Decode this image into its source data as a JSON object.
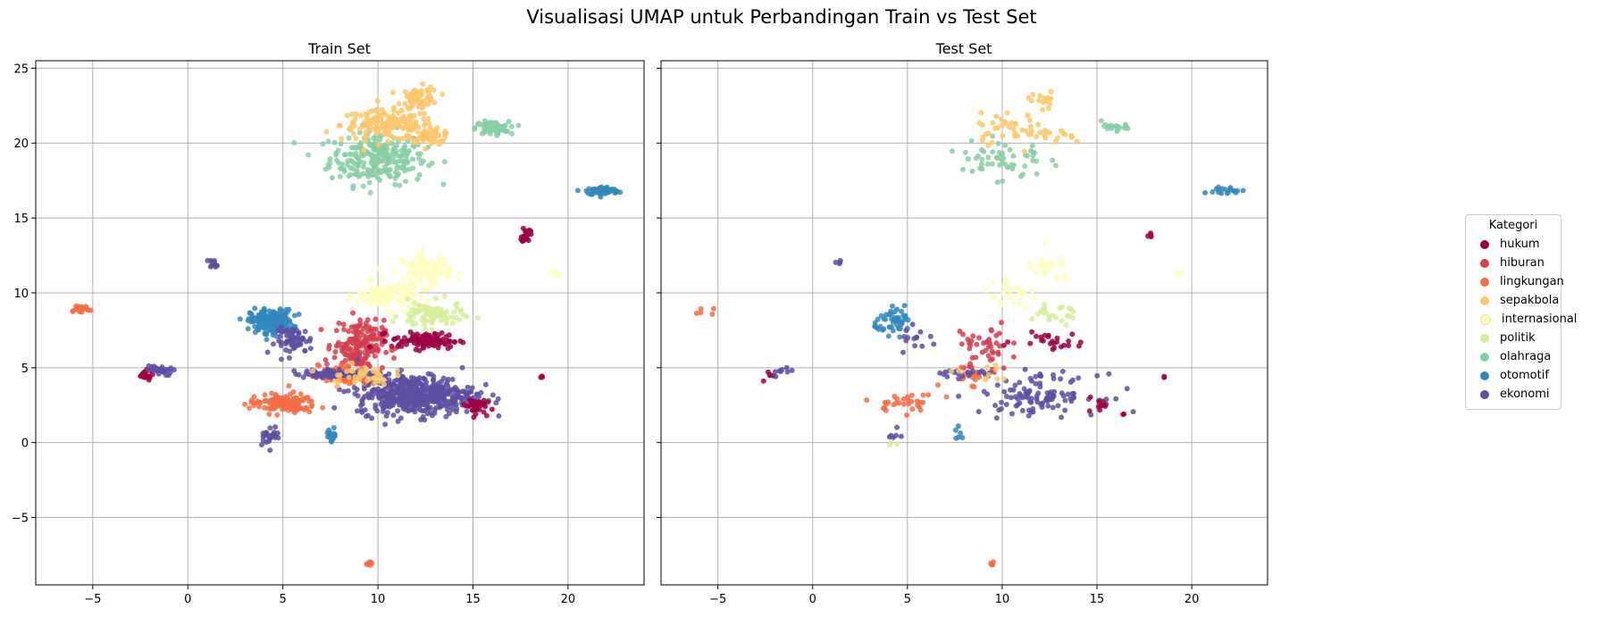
{
  "figure_title": "Visualisasi UMAP untuk Perbandingan Train vs Test Set",
  "legend": {
    "title": "Kategori",
    "entries": [
      {
        "label": "hukum",
        "color": "#9e0142"
      },
      {
        "label": "hiburan",
        "color": "#d53e4f"
      },
      {
        "label": "lingkungan",
        "color": "#f46d43"
      },
      {
        "label": "sepakbola",
        "color": "#fdc76b"
      },
      {
        "label": "internasional",
        "color": "#ffffbf"
      },
      {
        "label": "politik",
        "color": "#d6ee9b"
      },
      {
        "label": "olahraga",
        "color": "#88cfa4"
      },
      {
        "label": "otomotif",
        "color": "#3288bd"
      },
      {
        "label": "ekonomi",
        "color": "#5e4fa2"
      }
    ]
  },
  "chart_data": [
    {
      "type": "scatter",
      "title": "Train Set",
      "xlabel": "",
      "ylabel": "",
      "xlim": [
        -8,
        24
      ],
      "ylim": [
        -9.5,
        25.5
      ],
      "xticks": [
        -5,
        0,
        5,
        10,
        15,
        20
      ],
      "yticks": [
        -5,
        0,
        5,
        10,
        15,
        20,
        25
      ],
      "grid": true,
      "clusters": [
        {
          "category": "olahraga",
          "cx": 10,
          "cy": 19,
          "rx": 2.3,
          "ry": 1.6,
          "n": 260
        },
        {
          "category": "sepakbola",
          "cx": 10.5,
          "cy": 21.2,
          "rx": 2.2,
          "ry": 0.9,
          "n": 160
        },
        {
          "category": "sepakbola",
          "cx": 12.2,
          "cy": 23,
          "rx": 0.9,
          "ry": 0.7,
          "n": 60
        },
        {
          "category": "sepakbola",
          "cx": 12.8,
          "cy": 20.5,
          "rx": 1.0,
          "ry": 0.4,
          "n": 50
        },
        {
          "category": "olahraga",
          "cx": 16,
          "cy": 21,
          "rx": 0.8,
          "ry": 0.4,
          "n": 80
        },
        {
          "category": "otomotif",
          "cx": 21.8,
          "cy": 16.8,
          "rx": 0.8,
          "ry": 0.25,
          "n": 80
        },
        {
          "category": "hukum",
          "cx": 17.8,
          "cy": 13.9,
          "rx": 0.2,
          "ry": 0.5,
          "n": 25
        },
        {
          "category": "ekonomi",
          "cx": 1.4,
          "cy": 12,
          "rx": 0.25,
          "ry": 0.25,
          "n": 12
        },
        {
          "category": "lingkungan",
          "cx": -5.7,
          "cy": 8.9,
          "rx": 0.6,
          "ry": 0.3,
          "n": 18
        },
        {
          "category": "hukum",
          "cx": -2.3,
          "cy": 4.5,
          "rx": 0.4,
          "ry": 0.3,
          "n": 20
        },
        {
          "category": "ekonomi",
          "cx": -1.5,
          "cy": 4.8,
          "rx": 0.6,
          "ry": 0.3,
          "n": 28
        },
        {
          "category": "otomotif",
          "cx": 4.4,
          "cy": 8.1,
          "rx": 1.0,
          "ry": 0.7,
          "n": 220
        },
        {
          "category": "ekonomi",
          "cx": 5.6,
          "cy": 6.8,
          "rx": 0.9,
          "ry": 0.8,
          "n": 60
        },
        {
          "category": "internasional",
          "cx": 12.5,
          "cy": 11.5,
          "rx": 1.2,
          "ry": 1.0,
          "n": 100
        },
        {
          "category": "internasional",
          "cx": 10.5,
          "cy": 9.8,
          "rx": 1.4,
          "ry": 0.8,
          "n": 120
        },
        {
          "category": "politik",
          "cx": 12.8,
          "cy": 8.5,
          "rx": 1.5,
          "ry": 0.8,
          "n": 90
        },
        {
          "category": "hiburan",
          "cx": 9,
          "cy": 6.5,
          "rx": 1.2,
          "ry": 1.5,
          "n": 180
        },
        {
          "category": "hukum",
          "cx": 12.5,
          "cy": 6.8,
          "rx": 1.6,
          "ry": 0.5,
          "n": 100
        },
        {
          "category": "ekonomi",
          "cx": 12,
          "cy": 3.2,
          "rx": 2.8,
          "ry": 1.2,
          "n": 500
        },
        {
          "category": "hukum",
          "cx": 15.1,
          "cy": 2.5,
          "rx": 0.5,
          "ry": 0.5,
          "n": 40
        },
        {
          "category": "lingkungan",
          "cx": 5,
          "cy": 2.6,
          "rx": 1.6,
          "ry": 0.6,
          "n": 130
        },
        {
          "category": "lingkungan",
          "cx": 8.2,
          "cy": 4.5,
          "rx": 1.2,
          "ry": 0.6,
          "n": 80
        },
        {
          "category": "otomotif",
          "cx": 7.6,
          "cy": 0.5,
          "rx": 0.25,
          "ry": 0.4,
          "n": 20
        },
        {
          "category": "ekonomi",
          "cx": 4.3,
          "cy": 0.5,
          "rx": 0.5,
          "ry": 0.6,
          "n": 25
        },
        {
          "category": "ekonomi",
          "cx": 8,
          "cy": 4.6,
          "rx": 2.2,
          "ry": 0.25,
          "n": 80
        },
        {
          "category": "lingkungan",
          "cx": 9.5,
          "cy": -8.1,
          "rx": 0.15,
          "ry": 0.15,
          "n": 8
        },
        {
          "category": "internasional",
          "cx": 19.3,
          "cy": 11.3,
          "rx": 0.2,
          "ry": 0.15,
          "n": 6
        },
        {
          "category": "hukum",
          "cx": 18.6,
          "cy": 4.4,
          "rx": 0.1,
          "ry": 0.1,
          "n": 3
        },
        {
          "category": "sepakbola",
          "cx": 9,
          "cy": 4.5,
          "rx": 1.5,
          "ry": 0.6,
          "n": 40
        }
      ]
    },
    {
      "type": "scatter",
      "title": "Test Set",
      "xlabel": "",
      "ylabel": "",
      "xlim": [
        -8,
        24
      ],
      "ylim": [
        -9.5,
        25.5
      ],
      "xticks": [
        -5,
        0,
        5,
        10,
        15,
        20
      ],
      "yticks": [
        -5,
        0,
        5,
        10,
        15,
        20,
        25
      ],
      "grid": true,
      "clusters": [
        {
          "category": "olahraga",
          "cx": 10,
          "cy": 19,
          "rx": 2.0,
          "ry": 1.5,
          "n": 55
        },
        {
          "category": "sepakbola",
          "cx": 10.5,
          "cy": 21,
          "rx": 2.0,
          "ry": 0.9,
          "n": 40
        },
        {
          "category": "sepakbola",
          "cx": 12.2,
          "cy": 22.8,
          "rx": 0.8,
          "ry": 0.6,
          "n": 14
        },
        {
          "category": "sepakbola",
          "cx": 12.8,
          "cy": 20.4,
          "rx": 0.9,
          "ry": 0.4,
          "n": 12
        },
        {
          "category": "olahraga",
          "cx": 16,
          "cy": 21,
          "rx": 0.7,
          "ry": 0.4,
          "n": 20
        },
        {
          "category": "otomotif",
          "cx": 21.8,
          "cy": 16.8,
          "rx": 0.7,
          "ry": 0.25,
          "n": 18
        },
        {
          "category": "hukum",
          "cx": 17.8,
          "cy": 13.9,
          "rx": 0.2,
          "ry": 0.4,
          "n": 5
        },
        {
          "category": "ekonomi",
          "cx": 1.4,
          "cy": 12,
          "rx": 0.2,
          "ry": 0.2,
          "n": 4
        },
        {
          "category": "lingkungan",
          "cx": -5.7,
          "cy": 8.8,
          "rx": 0.5,
          "ry": 0.3,
          "n": 5
        },
        {
          "category": "hukum",
          "cx": -2.3,
          "cy": 4.5,
          "rx": 0.4,
          "ry": 0.3,
          "n": 5
        },
        {
          "category": "ekonomi",
          "cx": -1.5,
          "cy": 4.8,
          "rx": 0.6,
          "ry": 0.3,
          "n": 8
        },
        {
          "category": "otomotif",
          "cx": 4.4,
          "cy": 8.1,
          "rx": 1.0,
          "ry": 0.7,
          "n": 50
        },
        {
          "category": "ekonomi",
          "cx": 5.6,
          "cy": 6.8,
          "rx": 0.9,
          "ry": 0.8,
          "n": 14
        },
        {
          "category": "internasional",
          "cx": 12.5,
          "cy": 11.5,
          "rx": 1.2,
          "ry": 1.0,
          "n": 25
        },
        {
          "category": "internasional",
          "cx": 10.5,
          "cy": 9.8,
          "rx": 1.4,
          "ry": 0.8,
          "n": 28
        },
        {
          "category": "politik",
          "cx": 12.8,
          "cy": 8.5,
          "rx": 1.5,
          "ry": 0.8,
          "n": 22
        },
        {
          "category": "hiburan",
          "cx": 9,
          "cy": 6.3,
          "rx": 1.3,
          "ry": 1.6,
          "n": 45
        },
        {
          "category": "hukum",
          "cx": 12.5,
          "cy": 6.8,
          "rx": 1.6,
          "ry": 0.5,
          "n": 25
        },
        {
          "category": "ekonomi",
          "cx": 12,
          "cy": 3.2,
          "rx": 2.8,
          "ry": 1.2,
          "n": 110
        },
        {
          "category": "hukum",
          "cx": 15.1,
          "cy": 2.5,
          "rx": 0.5,
          "ry": 0.5,
          "n": 10
        },
        {
          "category": "lingkungan",
          "cx": 5,
          "cy": 2.6,
          "rx": 1.6,
          "ry": 0.6,
          "n": 30
        },
        {
          "category": "lingkungan",
          "cx": 8.2,
          "cy": 4.5,
          "rx": 1.2,
          "ry": 0.6,
          "n": 18
        },
        {
          "category": "otomotif",
          "cx": 7.6,
          "cy": 0.5,
          "rx": 0.2,
          "ry": 0.4,
          "n": 6
        },
        {
          "category": "ekonomi",
          "cx": 4.3,
          "cy": 0.5,
          "rx": 0.5,
          "ry": 0.6,
          "n": 6
        },
        {
          "category": "ekonomi",
          "cx": 8,
          "cy": 4.6,
          "rx": 2.2,
          "ry": 0.25,
          "n": 20
        },
        {
          "category": "lingkungan",
          "cx": 9.5,
          "cy": -8.1,
          "rx": 0.15,
          "ry": 0.15,
          "n": 4
        },
        {
          "category": "internasional",
          "cx": 19.3,
          "cy": 11.3,
          "rx": 0.2,
          "ry": 0.15,
          "n": 3
        },
        {
          "category": "hukum",
          "cx": 18.6,
          "cy": 4.4,
          "rx": 0.1,
          "ry": 0.1,
          "n": 2
        },
        {
          "category": "sepakbola",
          "cx": 9,
          "cy": 4.5,
          "rx": 1.5,
          "ry": 0.6,
          "n": 10
        },
        {
          "category": "politik",
          "cx": 4.2,
          "cy": -0.1,
          "rx": 0.3,
          "ry": 0.2,
          "n": 3
        },
        {
          "category": "hukum",
          "cx": 16.4,
          "cy": 1.9,
          "rx": 0.1,
          "ry": 0.1,
          "n": 2
        }
      ]
    }
  ]
}
